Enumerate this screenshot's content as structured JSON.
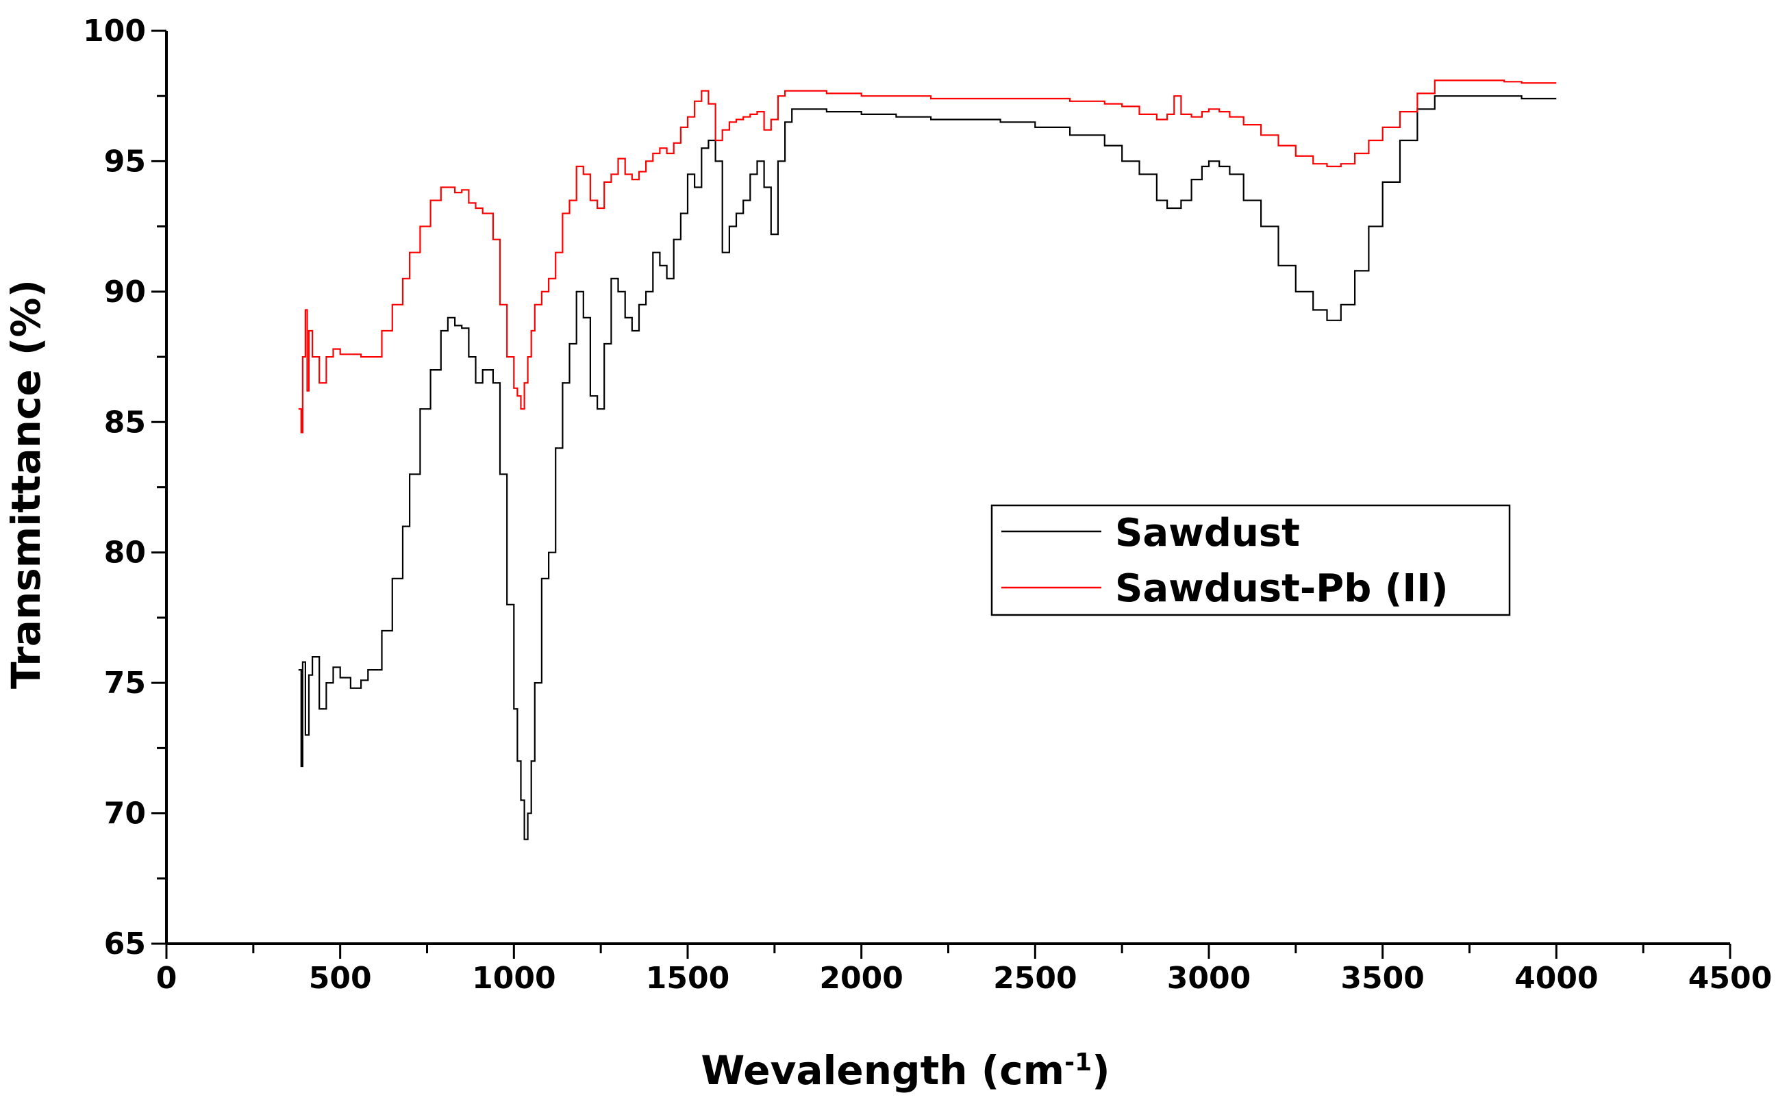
{
  "chart_data": {
    "type": "line",
    "title": "",
    "xlabel": "Wevalength (cm",
    "xlabel_sup": "-1",
    "xlabel_close": ")",
    "ylabel": "Transmittance (%)",
    "xlim": [
      0,
      4500
    ],
    "ylim": [
      65,
      100
    ],
    "x_ticks": [
      0,
      500,
      1000,
      1500,
      2000,
      2500,
      3000,
      3500,
      4000,
      4500
    ],
    "y_ticks": [
      65,
      70,
      75,
      80,
      85,
      90,
      95,
      100
    ],
    "grid": false,
    "legend_position": "center-right",
    "series": [
      {
        "name": "Sawdust",
        "color": "#000000",
        "x": [
          380,
          388,
          392,
          400,
          410,
          420,
          440,
          460,
          480,
          500,
          530,
          560,
          580,
          620,
          650,
          680,
          700,
          730,
          760,
          790,
          810,
          830,
          850,
          870,
          890,
          910,
          940,
          960,
          980,
          1000,
          1010,
          1020,
          1030,
          1040,
          1050,
          1060,
          1080,
          1100,
          1120,
          1140,
          1160,
          1180,
          1200,
          1220,
          1240,
          1260,
          1280,
          1300,
          1320,
          1340,
          1360,
          1380,
          1400,
          1420,
          1440,
          1460,
          1480,
          1500,
          1520,
          1540,
          1560,
          1580,
          1600,
          1620,
          1640,
          1660,
          1680,
          1700,
          1720,
          1740,
          1760,
          1780,
          1800,
          1850,
          1900,
          2000,
          2100,
          2200,
          2300,
          2400,
          2500,
          2600,
          2700,
          2750,
          2800,
          2850,
          2880,
          2900,
          2920,
          2950,
          2980,
          3000,
          3030,
          3060,
          3100,
          3150,
          3200,
          3250,
          3300,
          3340,
          3380,
          3420,
          3460,
          3500,
          3550,
          3600,
          3650,
          3700,
          3750,
          3800,
          3850,
          3900,
          3950,
          4000
        ],
        "y": [
          75.5,
          71.8,
          75.8,
          73,
          75.3,
          76,
          74,
          75,
          75.6,
          75.2,
          74.8,
          75.1,
          75.5,
          77,
          79,
          81,
          83,
          85.5,
          87,
          88.5,
          89,
          88.7,
          88.6,
          87.5,
          86.5,
          87,
          86.5,
          83,
          78,
          74,
          72,
          70.5,
          69,
          70,
          72,
          75,
          79,
          80,
          84,
          86.5,
          88,
          90,
          89,
          86,
          85.5,
          88,
          90.5,
          90,
          89,
          88.5,
          89.5,
          90,
          91.5,
          91,
          90.5,
          92,
          93,
          94.5,
          94,
          95.5,
          95.8,
          95,
          91.5,
          92.5,
          93,
          93.5,
          94.5,
          95,
          94,
          92.2,
          95,
          96.5,
          97,
          97,
          96.9,
          96.8,
          96.7,
          96.6,
          96.6,
          96.5,
          96.3,
          96,
          95.6,
          95,
          94.5,
          93.5,
          93.2,
          93.2,
          93.5,
          94.3,
          94.8,
          95,
          94.8,
          94.5,
          93.5,
          92.5,
          91,
          90,
          89.3,
          88.9,
          89.5,
          90.8,
          92.5,
          94.2,
          95.8,
          97,
          97.5,
          97.5,
          97.5,
          97.5,
          97.5,
          97.4,
          97.4,
          97.4
        ],
        "legend_label": "Sawdust"
      },
      {
        "name": "Sawdust-Pb (II)",
        "color": "#ff0000",
        "x": [
          380,
          388,
          392,
          400,
          405,
          410,
          420,
          440,
          460,
          480,
          500,
          530,
          560,
          580,
          620,
          650,
          680,
          700,
          730,
          760,
          790,
          810,
          830,
          850,
          870,
          890,
          910,
          940,
          960,
          980,
          1000,
          1010,
          1020,
          1030,
          1040,
          1050,
          1060,
          1080,
          1100,
          1120,
          1140,
          1160,
          1180,
          1200,
          1220,
          1240,
          1260,
          1280,
          1300,
          1320,
          1340,
          1360,
          1380,
          1400,
          1420,
          1440,
          1460,
          1480,
          1500,
          1520,
          1540,
          1560,
          1580,
          1600,
          1620,
          1640,
          1660,
          1680,
          1700,
          1720,
          1740,
          1760,
          1780,
          1800,
          1850,
          1900,
          2000,
          2100,
          2200,
          2300,
          2400,
          2500,
          2600,
          2700,
          2750,
          2800,
          2850,
          2880,
          2900,
          2920,
          2950,
          2980,
          3000,
          3030,
          3060,
          3100,
          3150,
          3200,
          3250,
          3300,
          3340,
          3380,
          3420,
          3460,
          3500,
          3550,
          3600,
          3650,
          3700,
          3750,
          3800,
          3850,
          3900,
          3950,
          4000
        ],
        "y": [
          85.5,
          84.6,
          87.5,
          89.3,
          86.2,
          88.5,
          87.5,
          86.5,
          87.5,
          87.8,
          87.6,
          87.6,
          87.5,
          87.5,
          88.5,
          89.5,
          90.5,
          91.5,
          92.5,
          93.5,
          94,
          94,
          93.8,
          93.9,
          93.4,
          93.2,
          93,
          92,
          89.5,
          87.5,
          86.3,
          86,
          85.5,
          86.5,
          87.5,
          88.5,
          89.5,
          90,
          90.5,
          91.5,
          93,
          93.5,
          94.8,
          94.5,
          93.5,
          93.2,
          94.2,
          94.5,
          95.1,
          94.5,
          94.3,
          94.6,
          95,
          95.3,
          95.5,
          95.3,
          95.7,
          96.3,
          96.7,
          97.3,
          97.7,
          97.2,
          95.8,
          96.2,
          96.5,
          96.6,
          96.7,
          96.8,
          96.9,
          96.2,
          96.6,
          97.5,
          97.7,
          97.7,
          97.7,
          97.6,
          97.5,
          97.5,
          97.4,
          97.4,
          97.4,
          97.4,
          97.3,
          97.2,
          97.1,
          96.8,
          96.6,
          96.8,
          97.5,
          96.8,
          96.7,
          96.9,
          97,
          96.9,
          96.7,
          96.4,
          96,
          95.6,
          95.2,
          94.9,
          94.8,
          94.9,
          95.3,
          95.8,
          96.3,
          96.9,
          97.6,
          98.1,
          98.1,
          98.1,
          98.1,
          98.05,
          98,
          98,
          98
        ],
        "legend_label": "Sawdust-Pb (II)"
      }
    ]
  }
}
